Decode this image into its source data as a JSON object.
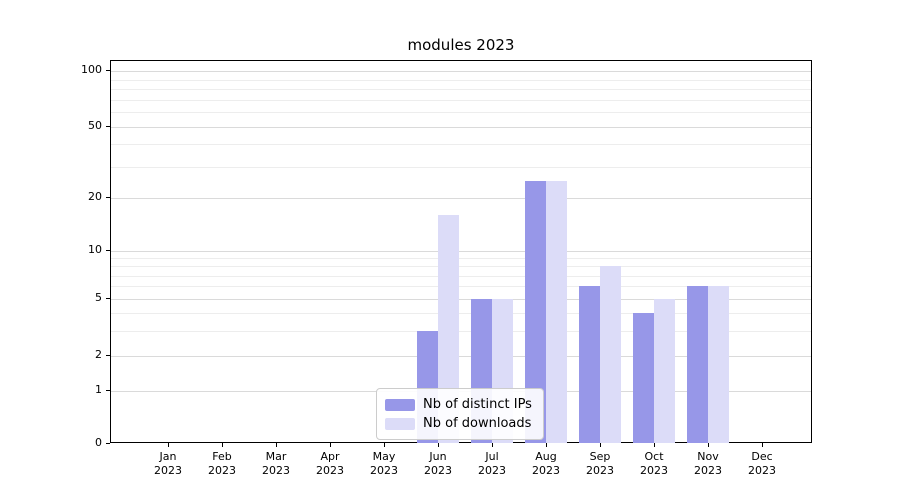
{
  "chart_data": {
    "type": "bar",
    "title": "modules 2023",
    "year": "2023",
    "categories": [
      "Jan",
      "Feb",
      "Mar",
      "Apr",
      "May",
      "Jun",
      "Jul",
      "Aug",
      "Sep",
      "Oct",
      "Nov",
      "Dec"
    ],
    "series": [
      {
        "name": "Nb of distinct IPs",
        "color": "#9797e8",
        "values": [
          0,
          0,
          0,
          0,
          0,
          3,
          5,
          25,
          6,
          4,
          6,
          0
        ]
      },
      {
        "name": "Nb of downloads",
        "color": "#dcdcf8",
        "values": [
          0,
          0,
          0,
          0,
          0,
          16,
          5,
          25,
          8,
          5,
          6,
          0
        ]
      }
    ],
    "xlabel": "",
    "ylabel": "",
    "ylim": [
      0,
      100
    ],
    "scale": "symlog",
    "yticks": [
      0,
      1,
      2,
      5,
      10,
      20,
      50,
      100
    ],
    "minor_yticks": [
      3,
      4,
      6,
      7,
      8,
      9,
      30,
      40,
      60,
      70,
      80,
      90
    ],
    "grid": true,
    "legend_position": "lower center inside",
    "colors": {
      "major_grid": "#dadada",
      "minor_grid": "#ededed",
      "spine": "#000000",
      "background": "#ffffff"
    }
  }
}
